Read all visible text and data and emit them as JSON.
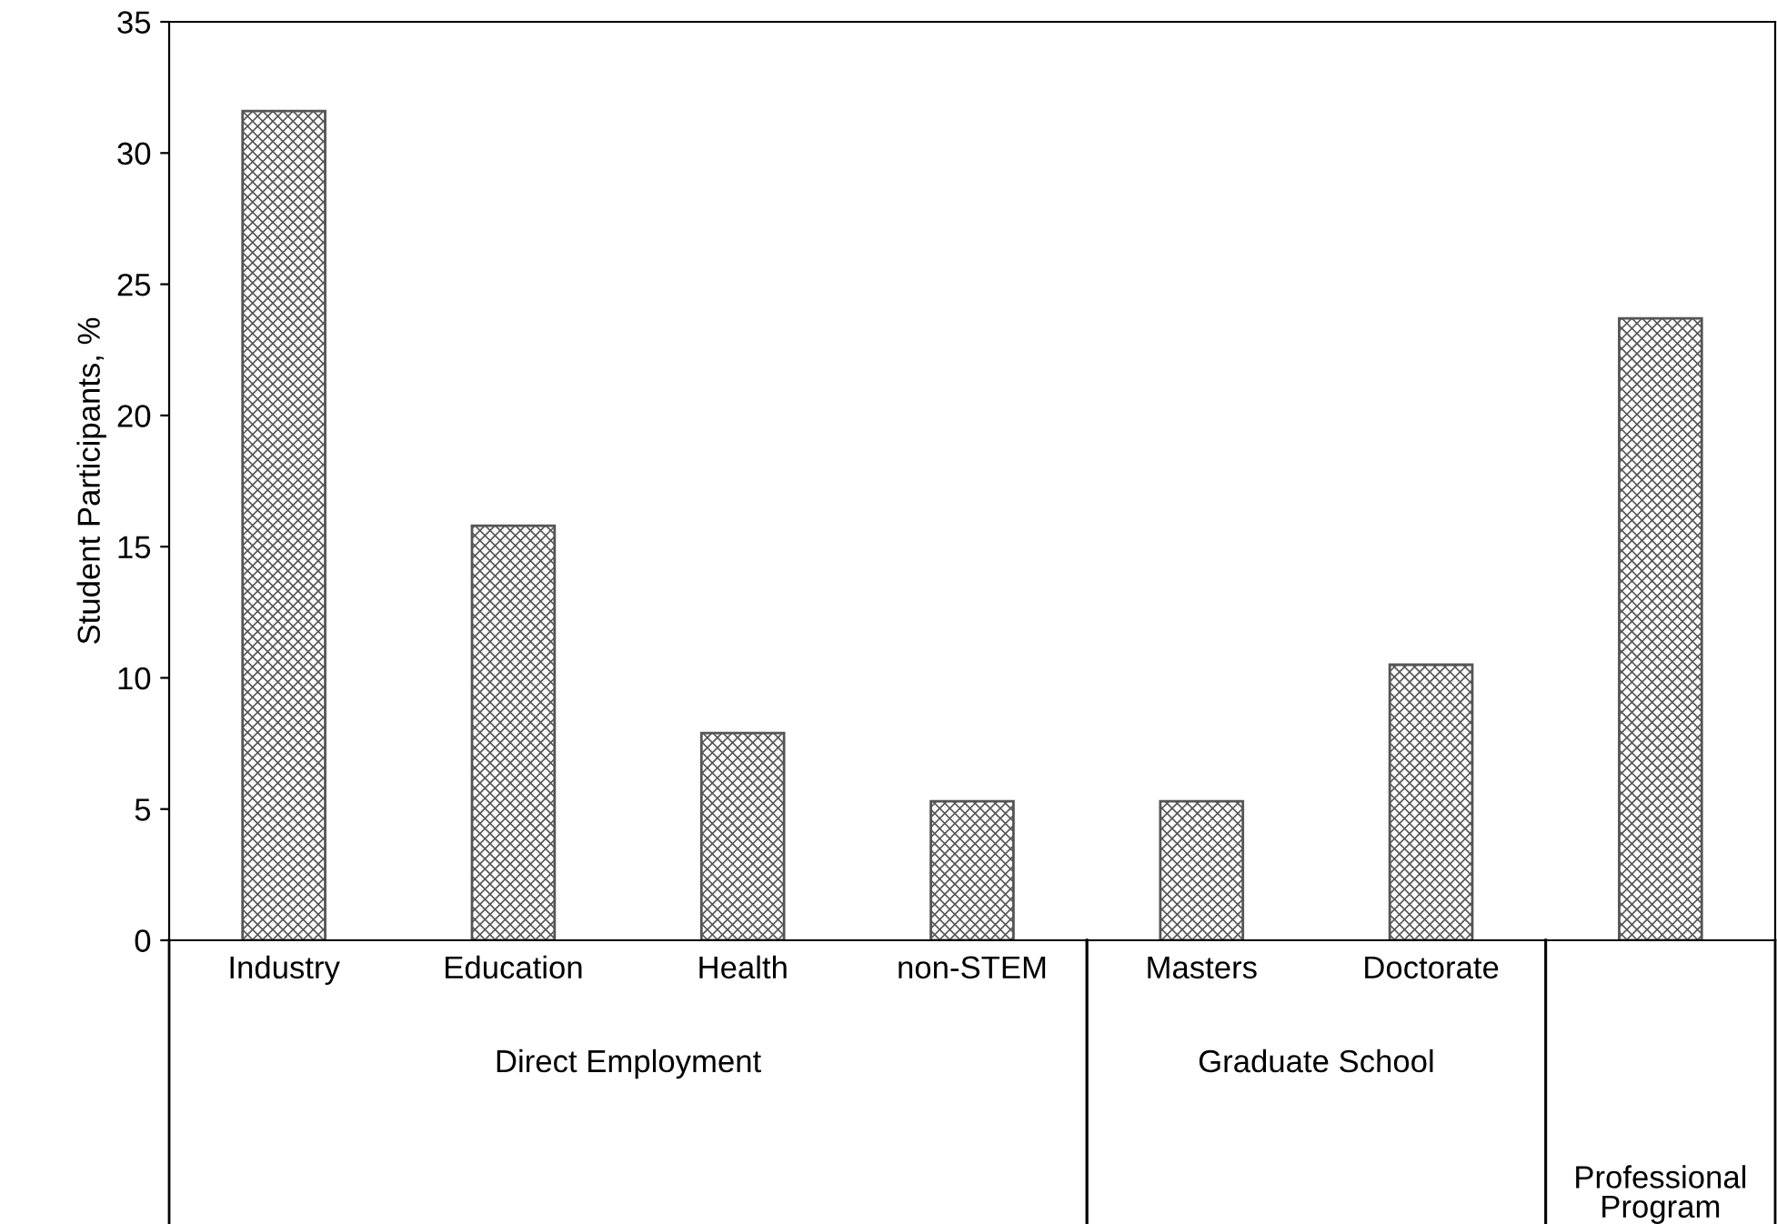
{
  "chart_data": {
    "type": "bar",
    "ylabel": "Student Participants, %",
    "categories": [
      "Industry",
      "Education",
      "Health",
      "non-STEM",
      "Masters",
      "Doctorate",
      null
    ],
    "values": [
      31.6,
      15.8,
      7.9,
      5.3,
      5.3,
      10.5,
      23.7
    ],
    "color": "#555555",
    "ylim": [
      0,
      35
    ],
    "yticks": [
      0,
      5,
      10,
      15,
      20,
      25,
      30,
      35
    ],
    "grid": false,
    "annotations": [
      "Direct Employment",
      "Graduate School",
      "Professional\nProgram"
    ]
  }
}
